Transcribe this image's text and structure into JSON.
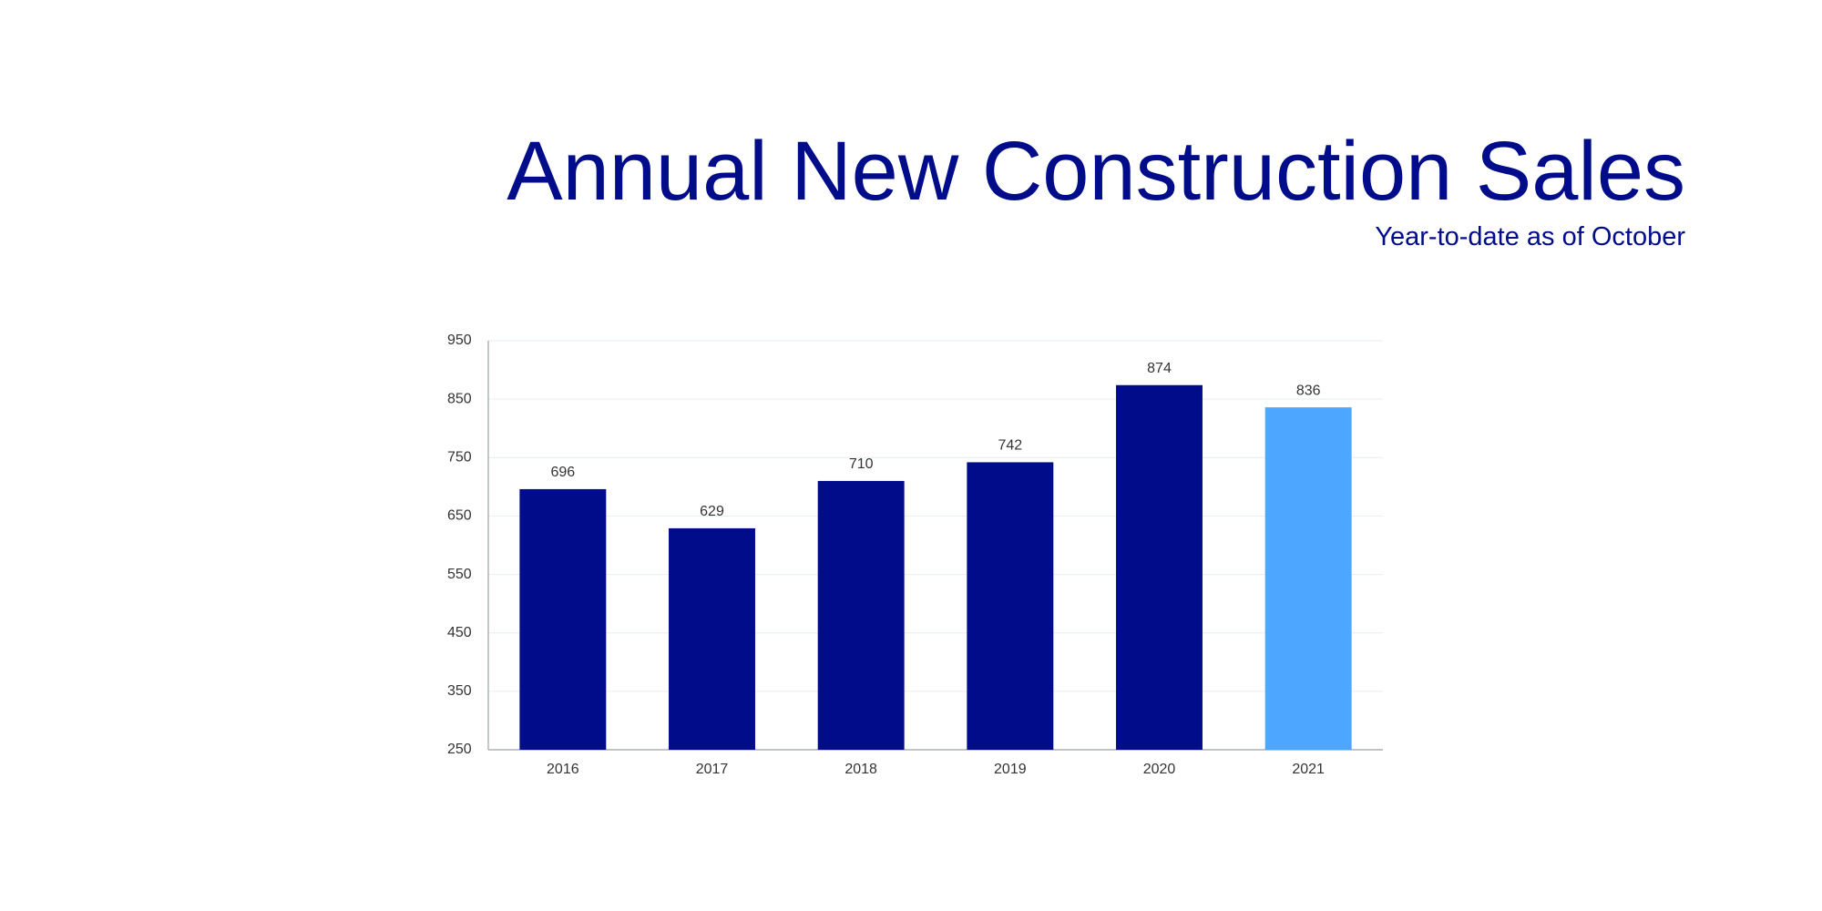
{
  "chart_data": {
    "type": "bar",
    "title": "Annual New Construction Sales",
    "subtitle": "Year-to-date as of October",
    "categories": [
      "2016",
      "2017",
      "2018",
      "2019",
      "2020",
      "2021"
    ],
    "values": [
      696,
      629,
      710,
      742,
      874,
      836
    ],
    "colors": [
      "#000c8a",
      "#000c8a",
      "#000c8a",
      "#000c8a",
      "#000c8a",
      "#4da6ff"
    ],
    "ylim": [
      250,
      950
    ],
    "yticks": [
      250,
      350,
      450,
      550,
      650,
      750,
      850,
      950
    ],
    "grid": true
  }
}
